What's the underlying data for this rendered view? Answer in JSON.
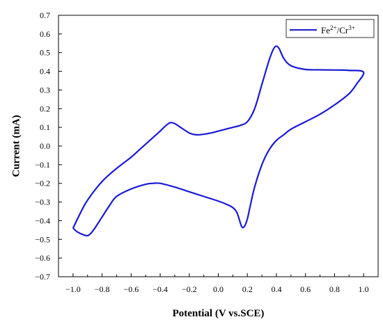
{
  "chart_data": {
    "type": "line",
    "xlabel": "Potential (V vs.SCE)",
    "ylabel": "Current (mA)",
    "xlim": [
      -1.1,
      1.1
    ],
    "ylim": [
      -0.7,
      0.7
    ],
    "x_ticks": [
      -1.0,
      -0.8,
      -0.6,
      -0.4,
      -0.2,
      0.0,
      0.2,
      0.4,
      0.6,
      0.8,
      1.0
    ],
    "y_ticks": [
      -0.7,
      -0.6,
      -0.5,
      -0.4,
      -0.3,
      -0.2,
      -0.1,
      0.0,
      0.1,
      0.2,
      0.3,
      0.4,
      0.5,
      0.6,
      0.7
    ],
    "x_tick_labels": [
      "−1.0",
      "−0.8",
      "−0.6",
      "−0.4",
      "−0.2",
      "0.0",
      "0.2",
      "0.4",
      "0.6",
      "0.8",
      "1.0"
    ],
    "y_tick_labels": [
      "−0.7",
      "−0.6",
      "−0.5",
      "−0.4",
      "−0.3",
      "−0.2",
      "−0.1",
      "0.0",
      "0.1",
      "0.2",
      "0.3",
      "0.4",
      "0.5",
      "0.6",
      "0.7"
    ],
    "grid": false,
    "legend_position": "top-right",
    "series": [
      {
        "name": "Fe2+/Cr3+",
        "legend": {
          "base1": "Fe",
          "sup1": "2+",
          "mid": "/Cr",
          "sup2": "3+"
        },
        "color": "#1a1ad4",
        "x": [
          -1.0,
          -0.95,
          -0.9,
          -0.8,
          -0.7,
          -0.6,
          -0.55,
          -0.5,
          -0.45,
          -0.4,
          -0.36,
          -0.33,
          -0.3,
          -0.26,
          -0.2,
          -0.15,
          -0.1,
          -0.05,
          0.0,
          0.05,
          0.1,
          0.15,
          0.2,
          0.25,
          0.3,
          0.35,
          0.38,
          0.4,
          0.42,
          0.45,
          0.5,
          0.6,
          0.7,
          0.8,
          0.9,
          1.0,
          0.95,
          0.9,
          0.8,
          0.7,
          0.6,
          0.5,
          0.45,
          0.4,
          0.35,
          0.3,
          0.25,
          0.22,
          0.2,
          0.18,
          0.16,
          0.13,
          0.1,
          0.05,
          0.0,
          -0.1,
          -0.2,
          -0.3,
          -0.4,
          -0.45,
          -0.5,
          -0.6,
          -0.7,
          -0.75,
          -0.8,
          -0.85,
          -0.88,
          -0.9,
          -0.93,
          -0.97,
          -1.0
        ],
        "y": [
          -0.44,
          -0.36,
          -0.29,
          -0.19,
          -0.12,
          -0.06,
          -0.025,
          0.01,
          0.045,
          0.08,
          0.11,
          0.125,
          0.12,
          0.1,
          0.07,
          0.06,
          0.063,
          0.07,
          0.08,
          0.09,
          0.1,
          0.11,
          0.13,
          0.2,
          0.33,
          0.46,
          0.52,
          0.535,
          0.52,
          0.47,
          0.43,
          0.41,
          0.408,
          0.407,
          0.405,
          0.395,
          0.33,
          0.28,
          0.22,
          0.17,
          0.13,
          0.09,
          0.06,
          0.03,
          -0.02,
          -0.1,
          -0.22,
          -0.32,
          -0.39,
          -0.43,
          -0.43,
          -0.36,
          -0.33,
          -0.31,
          -0.295,
          -0.27,
          -0.245,
          -0.22,
          -0.2,
          -0.2,
          -0.205,
          -0.23,
          -0.27,
          -0.32,
          -0.38,
          -0.44,
          -0.47,
          -0.48,
          -0.475,
          -0.46,
          -0.44
        ]
      }
    ]
  }
}
